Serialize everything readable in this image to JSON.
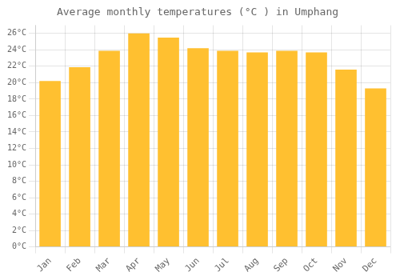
{
  "chart_data": {
    "type": "bar",
    "title": "Average monthly temperatures (°C ) in Umphang",
    "categories": [
      "Jan",
      "Feb",
      "Mar",
      "Apr",
      "May",
      "Jun",
      "Jul",
      "Aug",
      "Sep",
      "Oct",
      "Nov",
      "Dec"
    ],
    "values": [
      20.2,
      21.9,
      23.9,
      26.0,
      25.5,
      24.2,
      23.9,
      23.7,
      23.9,
      23.7,
      21.6,
      19.3
    ],
    "color": "#FFC030",
    "ylim": [
      0,
      27
    ],
    "yticks": [
      {
        "value": 0,
        "label": "0°C"
      },
      {
        "value": 2,
        "label": "2°C"
      },
      {
        "value": 4,
        "label": "4°C"
      },
      {
        "value": 6,
        "label": "6°C"
      },
      {
        "value": 8,
        "label": "8°C"
      },
      {
        "value": 10,
        "label": "10°C"
      },
      {
        "value": 12,
        "label": "12°C"
      },
      {
        "value": 14,
        "label": "14°C"
      },
      {
        "value": 16,
        "label": "16°C"
      },
      {
        "value": 18,
        "label": "18°C"
      },
      {
        "value": 20,
        "label": "20°C"
      },
      {
        "value": 22,
        "label": "22°C"
      },
      {
        "value": 24,
        "label": "24°C"
      },
      {
        "value": 26,
        "label": "26°C"
      }
    ],
    "grid": true
  }
}
